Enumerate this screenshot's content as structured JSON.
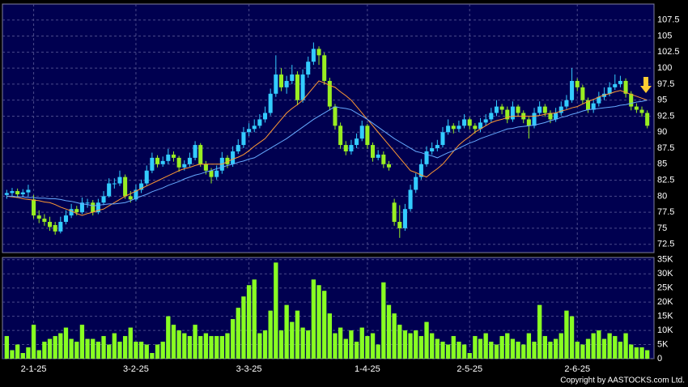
{
  "chart_data": {
    "type": "candlestick",
    "categories": [
      null,
      null,
      null,
      null,
      null,
      "2-1-25",
      null,
      null,
      null,
      null,
      null,
      null,
      null,
      null,
      null,
      null,
      null,
      null,
      null,
      null,
      null,
      null,
      null,
      null,
      "3-2-25",
      null,
      null,
      null,
      null,
      null,
      null,
      null,
      null,
      null,
      null,
      null,
      null,
      null,
      null,
      null,
      null,
      null,
      null,
      null,
      null,
      "3-3-25",
      null,
      null,
      null,
      null,
      null,
      null,
      null,
      null,
      null,
      null,
      null,
      null,
      null,
      null,
      null,
      null,
      null,
      null,
      null,
      null,
      null,
      "1-4-25",
      null,
      null,
      null,
      null,
      null,
      null,
      null,
      null,
      null,
      null,
      null,
      null,
      null,
      null,
      null,
      null,
      null,
      null,
      "2-5-25",
      null,
      null,
      null,
      null,
      null,
      null,
      null,
      null,
      null,
      null,
      null,
      null,
      null,
      null,
      null,
      null,
      null,
      null,
      null,
      "2-6-25",
      null,
      null,
      null,
      null,
      null,
      null,
      null,
      null,
      null,
      null,
      null,
      null,
      null
    ],
    "candles": [
      [
        80.2,
        81,
        79.6,
        80.5
      ],
      [
        80.5,
        81.3,
        80,
        80.8
      ],
      [
        80.8,
        81.2,
        79.8,
        80.3
      ],
      [
        80.3,
        81.1,
        79.9,
        80.6
      ],
      [
        80.6,
        81.8,
        80,
        81
      ],
      [
        79.5,
        80.2,
        76.5,
        77
      ],
      [
        77,
        77.8,
        75.8,
        76.5
      ],
      [
        76.5,
        77.2,
        75.4,
        76
      ],
      [
        76,
        76.8,
        74.6,
        75.2
      ],
      [
        75.5,
        76,
        74,
        74.5
      ],
      [
        74.5,
        76.8,
        74.2,
        76
      ],
      [
        76,
        77.8,
        75.6,
        77
      ],
      [
        77,
        78.8,
        76.6,
        78
      ],
      [
        78,
        78.5,
        77,
        77.5
      ],
      [
        77.5,
        79.8,
        77.2,
        79
      ],
      [
        79,
        79.6,
        78.2,
        79
      ],
      [
        79,
        79.4,
        77,
        77.5
      ],
      [
        77.5,
        79.6,
        77.2,
        79
      ],
      [
        79,
        80.8,
        78.6,
        80
      ],
      [
        80,
        82.8,
        79.8,
        82
      ],
      [
        82,
        82.8,
        81.2,
        82
      ],
      [
        82,
        84,
        81.6,
        83
      ],
      [
        83,
        83.4,
        79.6,
        80
      ],
      [
        80,
        80.8,
        79,
        79.5
      ],
      [
        79.5,
        81.8,
        79.2,
        81
      ],
      [
        81,
        82.6,
        80.5,
        82
      ],
      [
        82,
        84.8,
        81.6,
        84
      ],
      [
        84,
        86.8,
        83.6,
        86
      ],
      [
        86,
        86.4,
        84.5,
        85
      ],
      [
        85,
        86.2,
        84.6,
        85.5
      ],
      [
        85.5,
        87.4,
        85,
        86.5
      ],
      [
        86.5,
        87,
        85.4,
        86
      ],
      [
        86,
        86.3,
        83.8,
        84.5
      ],
      [
        84.5,
        85.6,
        84,
        85
      ],
      [
        85,
        86.8,
        84.6,
        86
      ],
      [
        86,
        88.6,
        85.6,
        88
      ],
      [
        88,
        88.3,
        84.6,
        85
      ],
      [
        85,
        85.5,
        83.4,
        84
      ],
      [
        84,
        84.4,
        82,
        83
      ],
      [
        83,
        84.8,
        82.6,
        84
      ],
      [
        84,
        86.9,
        83.5,
        86
      ],
      [
        86,
        86.4,
        84.4,
        85
      ],
      [
        85,
        87.8,
        84.6,
        87
      ],
      [
        87,
        88.9,
        86.6,
        88
      ],
      [
        88,
        90.8,
        87.5,
        90
      ],
      [
        90,
        91.4,
        89.4,
        90.5
      ],
      [
        90.5,
        92,
        90,
        91
      ],
      [
        91,
        92.8,
        90.6,
        92
      ],
      [
        92,
        94,
        91.5,
        93
      ],
      [
        93,
        96.8,
        92.6,
        96
      ],
      [
        96,
        102,
        95.5,
        99
      ],
      [
        99,
        100,
        96.4,
        97
      ],
      [
        97,
        98.8,
        96,
        98
      ],
      [
        98,
        100.5,
        97.5,
        99
      ],
      [
        99,
        99.5,
        94.2,
        95
      ],
      [
        95,
        99.8,
        94.6,
        99
      ],
      [
        99,
        101.8,
        98.5,
        101
      ],
      [
        101,
        104,
        100.5,
        103
      ],
      [
        103,
        103.4,
        100.5,
        102
      ],
      [
        102,
        102.4,
        97.4,
        98
      ],
      [
        98,
        98.5,
        93.4,
        94
      ],
      [
        94,
        94.4,
        90.4,
        91
      ],
      [
        91,
        91.5,
        87.4,
        88
      ],
      [
        88,
        88.6,
        86.4,
        87
      ],
      [
        87,
        88.8,
        86.5,
        88
      ],
      [
        88,
        89.8,
        87.5,
        89
      ],
      [
        89,
        91.8,
        88.6,
        91
      ],
      [
        91,
        91.3,
        87.4,
        88
      ],
      [
        88,
        88.4,
        85.4,
        86
      ],
      [
        86,
        87.2,
        85.6,
        86.5
      ],
      [
        86.5,
        87,
        84.4,
        85
      ],
      [
        85,
        85.5,
        84,
        84.5
      ],
      [
        79,
        79.6,
        75.4,
        76
      ],
      [
        76,
        78.6,
        73.5,
        75
      ],
      [
        75,
        78.8,
        74.6,
        78
      ],
      [
        78,
        81.8,
        77.6,
        81
      ],
      [
        81,
        83.6,
        80.5,
        83
      ],
      [
        83,
        85.8,
        82.6,
        85
      ],
      [
        85,
        87.8,
        84.6,
        87
      ],
      [
        87,
        88.4,
        86.5,
        87.5
      ],
      [
        87.5,
        88.8,
        87,
        88
      ],
      [
        88,
        90.8,
        87.6,
        90
      ],
      [
        90,
        92,
        89.6,
        91
      ],
      [
        91,
        91.4,
        89.8,
        90.5
      ],
      [
        90.5,
        91.8,
        90,
        91
      ],
      [
        91,
        92.8,
        90.6,
        92
      ],
      [
        92,
        92.3,
        90.4,
        91
      ],
      [
        91,
        91.4,
        89.8,
        90.5
      ],
      [
        90.5,
        92.2,
        90,
        91.5
      ],
      [
        91.5,
        92.8,
        91,
        92
      ],
      [
        92,
        93.8,
        91.6,
        93
      ],
      [
        93,
        95,
        92.5,
        94
      ],
      [
        94,
        94.4,
        92.8,
        93.5
      ],
      [
        93.5,
        94,
        91.4,
        92
      ],
      [
        92,
        94.8,
        91.6,
        94
      ],
      [
        94,
        94.3,
        92.4,
        93
      ],
      [
        93,
        93.4,
        91.4,
        92
      ],
      [
        92,
        92.4,
        89,
        91
      ],
      [
        91,
        93.8,
        90.6,
        93
      ],
      [
        93,
        94.8,
        92.6,
        94
      ],
      [
        94,
        94.4,
        92.4,
        93
      ],
      [
        93,
        93.4,
        91.4,
        92
      ],
      [
        92,
        93.8,
        91.6,
        93
      ],
      [
        93,
        94.8,
        92.6,
        94
      ],
      [
        94,
        95.8,
        93.6,
        95
      ],
      [
        95,
        100,
        94.6,
        98
      ],
      [
        98,
        98.4,
        96.4,
        97
      ],
      [
        97,
        97.4,
        94.4,
        95
      ],
      [
        95,
        95.4,
        93,
        93.5
      ],
      [
        93.5,
        95.2,
        93,
        94.5
      ],
      [
        94.5,
        96.3,
        94,
        95.5
      ],
      [
        95.5,
        97,
        95,
        96
      ],
      [
        96,
        97.8,
        95.6,
        97
      ],
      [
        97,
        99,
        96.6,
        97.5
      ],
      [
        97.5,
        98.8,
        97,
        98
      ],
      [
        98,
        98.4,
        95.4,
        96
      ],
      [
        96,
        96.4,
        93.4,
        94
      ],
      [
        94,
        94.5,
        93,
        93.5
      ],
      [
        93.5,
        94,
        92.4,
        93
      ],
      [
        93,
        93.4,
        90.6,
        91
      ]
    ],
    "up_color": "#33ccff",
    "down_color": "#99ee22",
    "lines": [
      {
        "color": "#ff9933",
        "values": [
          80,
          79.9,
          79.8,
          79.6,
          79.5,
          79.4,
          79.3,
          79.1,
          79,
          78.7,
          78.3,
          78,
          77.7,
          77.3,
          77,
          77.3,
          77.5,
          77.8,
          78,
          78.5,
          79,
          79.5,
          80,
          80.4,
          80.8,
          81.2,
          81.6,
          82,
          82.4,
          82.8,
          83.2,
          83.6,
          84,
          84.3,
          84.5,
          84.8,
          85,
          85,
          85,
          85,
          85,
          85.4,
          85.8,
          86.1,
          86.5,
          87.1,
          87.8,
          88.4,
          89,
          90,
          91,
          92,
          93,
          93.7,
          94.3,
          95,
          96,
          97,
          98,
          97.7,
          97.3,
          97,
          96.3,
          95.7,
          95,
          94,
          93,
          92,
          91,
          90,
          89,
          88,
          87,
          86,
          85,
          84,
          83.7,
          83.3,
          83,
          83.7,
          84.3,
          85,
          86,
          87,
          88,
          88.7,
          89.3,
          90,
          90.5,
          91,
          91.5,
          91.8,
          92,
          92.3,
          92.5,
          92.5,
          92.5,
          92.5,
          92.5,
          92.6,
          92.8,
          92.9,
          93,
          93.3,
          93.5,
          93.8,
          94,
          94.4,
          94.8,
          95.1,
          95.5,
          95.8,
          96,
          96.3,
          96.5,
          96.2,
          95.9,
          95.6,
          95.3,
          95
        ]
      },
      {
        "color": "#66aaff",
        "values": [
          80,
          80,
          79.9,
          79.9,
          79.8,
          79.8,
          79.7,
          79.7,
          79.6,
          79.6,
          79.5,
          79.3,
          79.2,
          79,
          78.8,
          78.7,
          78.5,
          78.6,
          78.7,
          78.8,
          78.8,
          78.9,
          79,
          79.3,
          79.7,
          80,
          80.3,
          80.7,
          81,
          81.3,
          81.7,
          82,
          82.3,
          82.7,
          83,
          83.3,
          83.5,
          83.8,
          84,
          84.3,
          84.5,
          84.8,
          85,
          85.3,
          85.5,
          85.8,
          86,
          86.5,
          87,
          87.5,
          88,
          88.5,
          89,
          89.6,
          90.2,
          90.8,
          91.4,
          92,
          92.5,
          93,
          93.5,
          94,
          93.8,
          93.7,
          93.5,
          93,
          92.5,
          92,
          91.4,
          90.8,
          90.2,
          89.6,
          89,
          88.5,
          88,
          87.5,
          87,
          86.8,
          86.5,
          86.3,
          86,
          86.4,
          86.8,
          87.1,
          87.5,
          87.9,
          88.3,
          88.6,
          89,
          89.3,
          89.6,
          89.9,
          90.2,
          90.5,
          90.6,
          90.8,
          90.9,
          91,
          91.1,
          91.3,
          91.5,
          91.8,
          92,
          92.3,
          92.5,
          92.8,
          93,
          93.3,
          93.5,
          93.6,
          93.7,
          93.8,
          93.9,
          94,
          94.2,
          94.3,
          94.5,
          94.7,
          94.8,
          95
        ]
      }
    ],
    "ylim": [
      71.2,
      110
    ],
    "yticks": [
      72.5,
      75,
      77.5,
      80,
      82.5,
      85,
      87.5,
      90,
      92.5,
      95,
      97.5,
      100,
      102.5,
      105,
      107.5
    ],
    "grid": true,
    "volume": {
      "color": "#88ff22",
      "ylim": [
        0,
        35800
      ],
      "yticks": [
        0,
        {
          "value": 5000,
          "label": "5K"
        },
        {
          "value": 10000,
          "label": "10K"
        },
        {
          "value": 15000,
          "label": "15K"
        },
        {
          "value": 20000,
          "label": "20K"
        },
        {
          "value": 25000,
          "label": "25K"
        },
        {
          "value": 30000,
          "label": "30K"
        },
        {
          "value": 35000,
          "label": "35K"
        }
      ],
      "values": [
        8000,
        3000,
        5000,
        2000,
        4000,
        12000,
        3000,
        6000,
        7000,
        8000,
        9000,
        11000,
        7000,
        6000,
        12000,
        7000,
        7000,
        6000,
        8000,
        5000,
        9000,
        6000,
        8000,
        11000,
        6000,
        6000,
        5000,
        2000,
        5000,
        6000,
        15000,
        12000,
        10000,
        9000,
        8000,
        12000,
        8000,
        9000,
        8000,
        8000,
        8000,
        9000,
        14000,
        18000,
        22000,
        26000,
        28000,
        9000,
        10000,
        17000,
        34000,
        10000,
        19000,
        13000,
        17000,
        11000,
        10000,
        28000,
        26000,
        24000,
        16000,
        9000,
        11000,
        7000,
        10000,
        6000,
        11000,
        8000,
        9000,
        5000,
        27000,
        19000,
        16000,
        12000,
        10000,
        9000,
        10000,
        8000,
        13000,
        9000,
        7000,
        6000,
        5000,
        8000,
        6000,
        5000,
        2000,
        8000,
        7000,
        9000,
        6000,
        5000,
        8000,
        9000,
        7000,
        6000,
        5000,
        9000,
        6000,
        19000,
        8000,
        6000,
        7000,
        9000,
        17000,
        15000,
        6000,
        5000,
        7000,
        9000,
        10000,
        7000,
        9000,
        8000,
        6000,
        9000,
        5000,
        4000,
        4000,
        3000
      ]
    },
    "source": "Copyright by AASTOCKS.com Ltd."
  }
}
